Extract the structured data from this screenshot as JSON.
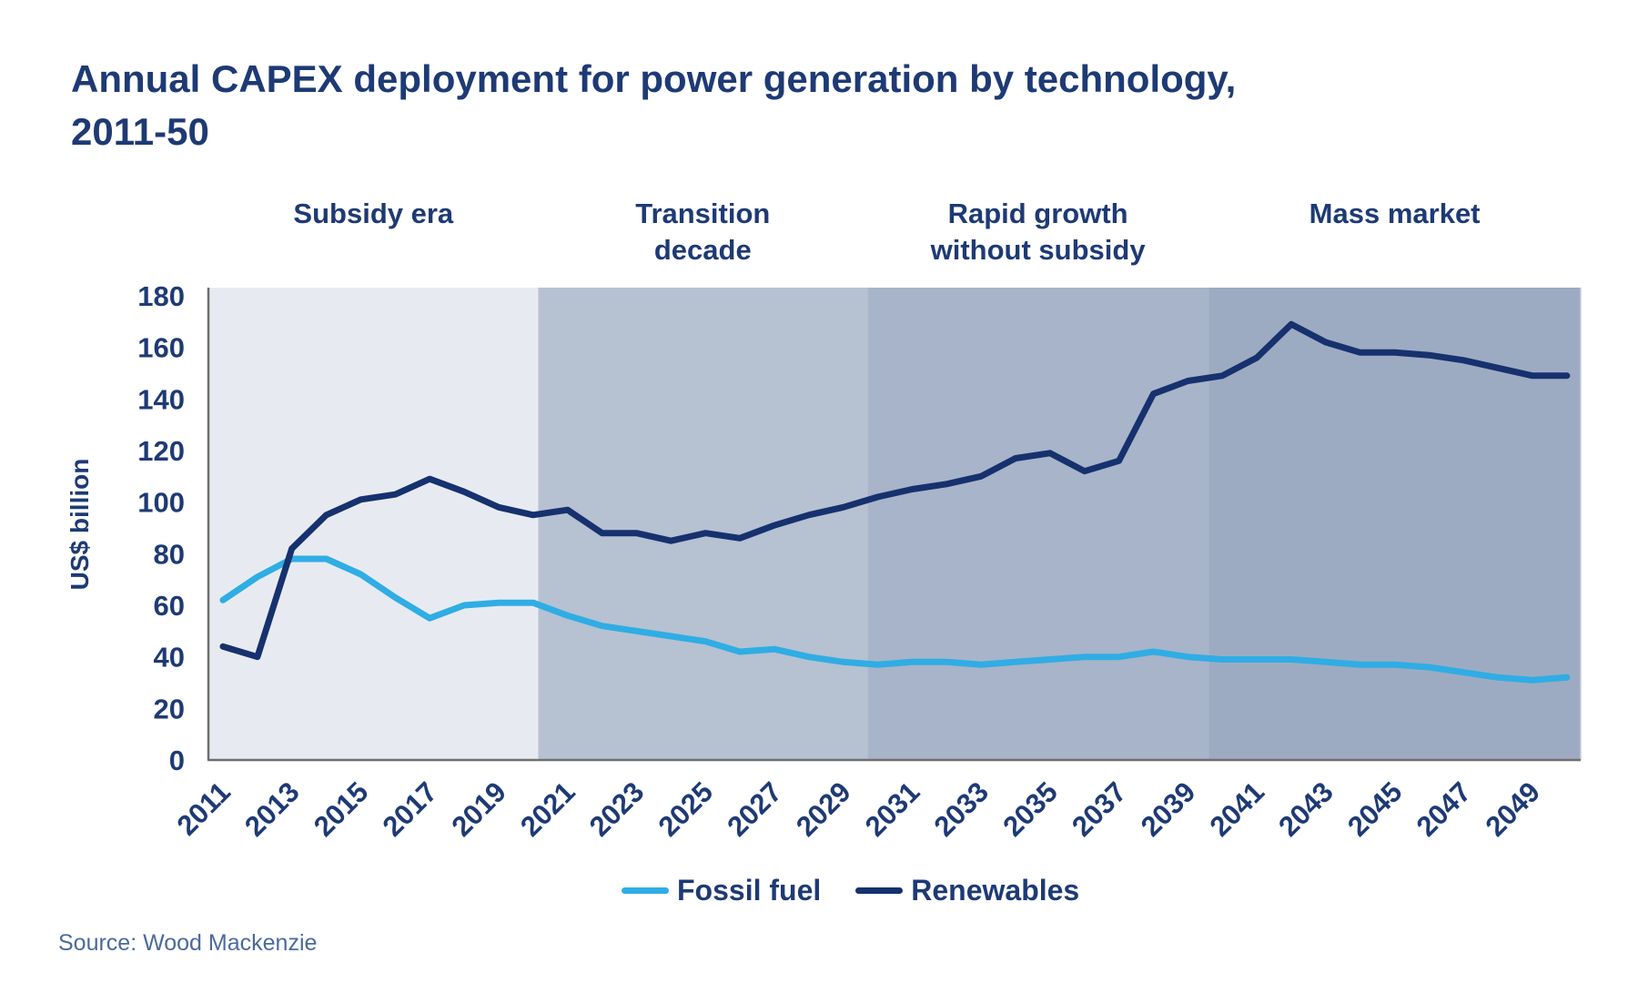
{
  "page": {
    "title": "Annual CAPEX deployment for power generation by technology, 2011-50",
    "source": "Source: Wood Mackenzie"
  },
  "chart_data": {
    "type": "line",
    "title": "Annual CAPEX deployment for power generation by technology, 2011-50",
    "xlabel": "",
    "ylabel": "US$ billion",
    "ylim": [
      0,
      180
    ],
    "y_ticks": [
      0,
      20,
      40,
      60,
      80,
      100,
      120,
      140,
      160,
      180
    ],
    "x_ticks": [
      2011,
      2013,
      2015,
      2017,
      2019,
      2021,
      2023,
      2025,
      2027,
      2029,
      2031,
      2033,
      2035,
      2037,
      2039,
      2041,
      2043,
      2045,
      2047,
      2049
    ],
    "x": [
      2011,
      2012,
      2013,
      2014,
      2015,
      2016,
      2017,
      2018,
      2019,
      2020,
      2021,
      2022,
      2023,
      2024,
      2025,
      2026,
      2027,
      2028,
      2029,
      2030,
      2031,
      2032,
      2033,
      2034,
      2035,
      2036,
      2037,
      2038,
      2039,
      2040,
      2041,
      2042,
      2043,
      2044,
      2045,
      2046,
      2047,
      2048,
      2049,
      2050
    ],
    "series": [
      {
        "name": "Fossil fuel",
        "color": "#2fade4",
        "values": [
          62,
          71,
          78,
          78,
          72,
          63,
          55,
          60,
          61,
          61,
          56,
          52,
          50,
          48,
          46,
          42,
          43,
          40,
          38,
          37,
          38,
          38,
          37,
          38,
          39,
          40,
          40,
          42,
          40,
          39,
          39,
          39,
          38,
          37,
          37,
          36,
          34,
          32,
          31,
          32
        ]
      },
      {
        "name": "Renewables",
        "color": "#16316e",
        "values": [
          44,
          40,
          82,
          95,
          101,
          103,
          109,
          104,
          98,
          95,
          97,
          88,
          88,
          85,
          88,
          86,
          91,
          95,
          98,
          102,
          105,
          107,
          110,
          117,
          119,
          112,
          116,
          142,
          147,
          149,
          156,
          169,
          162,
          158,
          158,
          157,
          155,
          152,
          149,
          149
        ]
      }
    ],
    "eras": [
      {
        "label_lines": [
          "Subsidy era"
        ],
        "start": 2010.58,
        "end": 2020.15,
        "color": "#e7ebf1"
      },
      {
        "label_lines": [
          "Transition",
          "decade"
        ],
        "start": 2020.15,
        "end": 2029.7,
        "color": "#b6c1d2"
      },
      {
        "label_lines": [
          "Rapid growth",
          "without subsidy"
        ],
        "start": 2029.7,
        "end": 2039.6,
        "color": "#a8b4c9"
      },
      {
        "label_lines": [
          "Mass market"
        ],
        "start": 2039.6,
        "end": 2050.4,
        "color": "#9dabc2"
      }
    ],
    "grid": false,
    "legend_position": "bottom",
    "text_color": "#1e3a75",
    "axis_color": "#6e6e6e",
    "background": "#ffffff"
  }
}
